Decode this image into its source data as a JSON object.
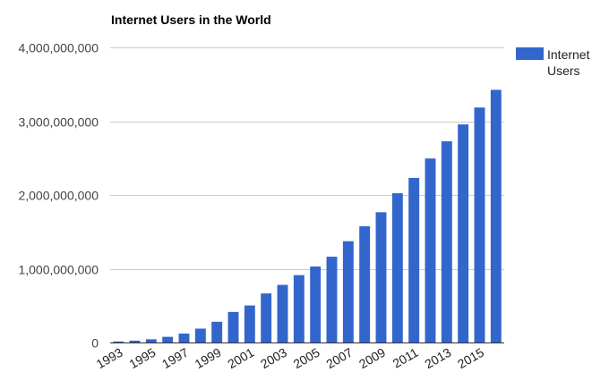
{
  "chart_data": {
    "type": "bar",
    "title": "Internet Users in the World",
    "xlabel": "",
    "ylabel": "",
    "categories": [
      "1993",
      "1994",
      "1995",
      "1996",
      "1997",
      "1998",
      "1999",
      "2000",
      "2001",
      "2002",
      "2003",
      "2004",
      "2005",
      "2006",
      "2007",
      "2008",
      "2009",
      "2010",
      "2011",
      "2012",
      "2013",
      "2014",
      "2015",
      "2016"
    ],
    "series": [
      {
        "name": "Internet Users",
        "color": "#3366cc",
        "values": [
          14000000,
          25000000,
          44000000,
          77000000,
          121000000,
          188000000,
          281000000,
          414000000,
          502000000,
          665000000,
          781000000,
          913000000,
          1030000000,
          1163000000,
          1373000000,
          1575000000,
          1766000000,
          2023000000,
          2231000000,
          2494000000,
          2728000000,
          2956000000,
          3185000000,
          3425000000
        ]
      }
    ],
    "ylim": [
      0,
      4000000000
    ],
    "y_ticks": [
      0,
      1000000000,
      2000000000,
      3000000000,
      4000000000
    ],
    "y_tick_labels": [
      "0",
      "1,000,000,000",
      "2,000,000,000",
      "3,000,000,000",
      "4,000,000,000"
    ],
    "x_tick_labels": [
      "1993",
      "1995",
      "1997",
      "1999",
      "2001",
      "2003",
      "2005",
      "2007",
      "2009",
      "2011",
      "2013",
      "2015"
    ],
    "grid": true,
    "legend_position": "right",
    "legend_label_lines": [
      "Internet",
      "Users"
    ]
  }
}
